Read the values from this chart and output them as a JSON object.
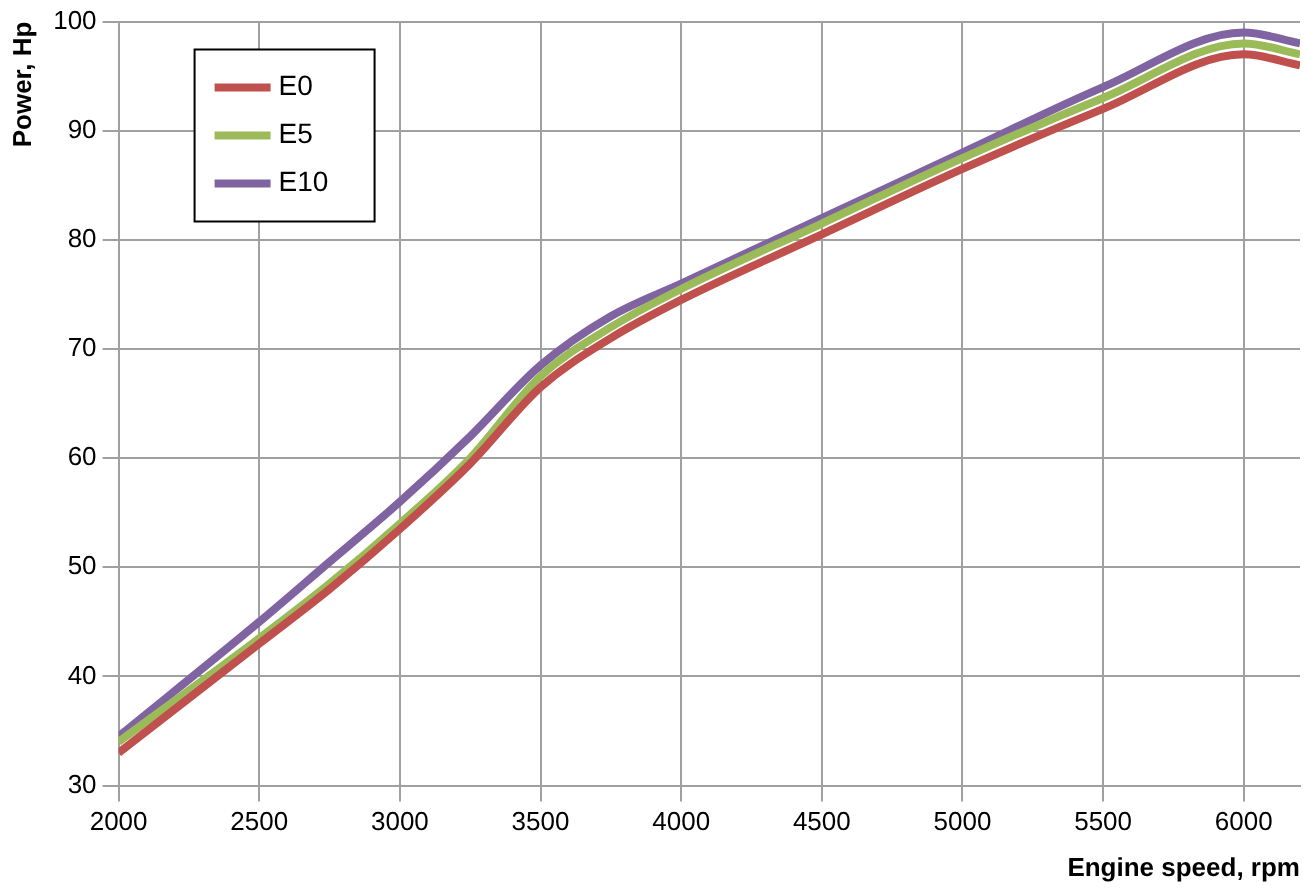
{
  "chart_data": {
    "type": "line",
    "xlabel": "Engine speed, rpm",
    "ylabel": "Power, Hp",
    "x": [
      2000,
      2500,
      2750,
      3000,
      3250,
      3500,
      3750,
      4000,
      4500,
      5000,
      5500,
      6000,
      6200
    ],
    "series": [
      {
        "name": "E0",
        "color": "#c0504d",
        "values": [
          33,
          43,
          48,
          53.5,
          59.5,
          66.5,
          71,
          74.5,
          80.5,
          86.5,
          92,
          97,
          96
        ]
      },
      {
        "name": "E5",
        "color": "#9bbb59",
        "values": [
          34,
          43.5,
          48.5,
          54,
          60,
          67.5,
          72,
          75.5,
          81.5,
          87.5,
          93,
          98,
          97
        ]
      },
      {
        "name": "E10",
        "color": "#8064a2",
        "values": [
          34.5,
          45,
          50.5,
          56,
          62,
          68.5,
          73,
          76,
          82,
          88,
          94,
          99,
          98
        ]
      }
    ],
    "xlim": [
      2000,
      6200
    ],
    "xticks": [
      2000,
      2500,
      3000,
      3500,
      4000,
      4500,
      5000,
      5500,
      6000
    ],
    "ylim": [
      30,
      100
    ],
    "yticks": [
      30,
      40,
      50,
      60,
      70,
      80,
      90,
      100
    ],
    "grid": true,
    "legend": "top left",
    "marker": "none",
    "line_style": "solid"
  }
}
